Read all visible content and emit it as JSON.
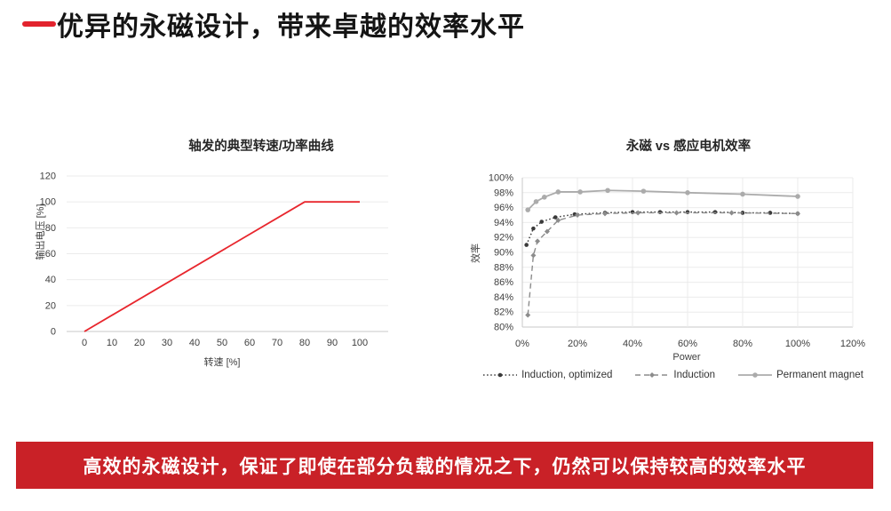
{
  "slide": {
    "title": "优异的永磁设计，带来卓越的效率水平",
    "banner_text": "高效的永磁设计，保证了即使在部分负载的情况之下，仍然可以保持较高的效率水平",
    "colors": {
      "accent_red": "#e2232d",
      "banner_red": "#c92127",
      "curve_red": "#e8262d"
    }
  },
  "chart_data": [
    {
      "type": "line",
      "title": "轴发的典型转速/功率曲线",
      "xlabel": "转速  [%]",
      "ylabel": "输出电压 [%]",
      "xlim": [
        0,
        100
      ],
      "ylim": [
        0,
        120
      ],
      "grid": "horizontal",
      "legend": "none",
      "xticks": [
        {
          "v": 0,
          "label": "0"
        },
        {
          "v": 10,
          "label": "10"
        },
        {
          "v": 20,
          "label": "20"
        },
        {
          "v": 30,
          "label": "30"
        },
        {
          "v": 40,
          "label": "40"
        },
        {
          "v": 50,
          "label": "50"
        },
        {
          "v": 60,
          "label": "60"
        },
        {
          "v": 70,
          "label": "70"
        },
        {
          "v": 80,
          "label": "80"
        },
        {
          "v": 90,
          "label": "90"
        },
        {
          "v": 100,
          "label": "100"
        }
      ],
      "yticks": [
        {
          "v": 0,
          "label": "0"
        },
        {
          "v": 20,
          "label": "20"
        },
        {
          "v": 40,
          "label": "40"
        },
        {
          "v": 60,
          "label": "60"
        },
        {
          "v": 80,
          "label": "80"
        },
        {
          "v": 100,
          "label": "100"
        },
        {
          "v": 120,
          "label": "120"
        }
      ],
      "series": [
        {
          "name": "输出电压",
          "color": "#e8262d",
          "dash": "none",
          "width": 1.8,
          "marker": "none",
          "marker_size": 0,
          "x": [
            0,
            80,
            100
          ],
          "y": [
            0,
            100,
            100
          ]
        }
      ]
    },
    {
      "type": "line",
      "title": "永磁 vs 感应电机效率",
      "xlabel": "Power",
      "ylabel": "效率",
      "xlim": [
        0,
        120
      ],
      "ylim": [
        80,
        100
      ],
      "grid": "both",
      "legend": "bottom",
      "xticks": [
        {
          "v": 0,
          "label": "0%"
        },
        {
          "v": 20,
          "label": "20%"
        },
        {
          "v": 40,
          "label": "40%"
        },
        {
          "v": 60,
          "label": "60%"
        },
        {
          "v": 80,
          "label": "80%"
        },
        {
          "v": 100,
          "label": "100%"
        },
        {
          "v": 120,
          "label": "120%"
        }
      ],
      "yticks": [
        {
          "v": 80,
          "label": "80%"
        },
        {
          "v": 82,
          "label": "82%"
        },
        {
          "v": 84,
          "label": "84%"
        },
        {
          "v": 86,
          "label": "86%"
        },
        {
          "v": 88,
          "label": "88%"
        },
        {
          "v": 90,
          "label": "90%"
        },
        {
          "v": 92,
          "label": "92%"
        },
        {
          "v": 94,
          "label": "94%"
        },
        {
          "v": 96,
          "label": "96%"
        },
        {
          "v": 98,
          "label": "98%"
        },
        {
          "v": 100,
          "label": "100%"
        }
      ],
      "series": [
        {
          "name": "Induction, optimized",
          "color": "#3a3a3a",
          "dash": "1.5 2.6",
          "width": 1.5,
          "marker": "circle",
          "marker_size": 2.3,
          "x": [
            1.5,
            4,
            7,
            12,
            19,
            30,
            40,
            50,
            60,
            70,
            80,
            90,
            100
          ],
          "y": [
            91.0,
            93.2,
            94.1,
            94.7,
            95.1,
            95.3,
            95.4,
            95.4,
            95.4,
            95.4,
            95.3,
            95.3,
            95.2
          ]
        },
        {
          "name": "Induction",
          "color": "#8c8c8c",
          "dash": "6 4",
          "width": 1.4,
          "marker": "diamond",
          "marker_size": 3,
          "x": [
            2,
            4,
            5.5,
            9,
            13,
            20,
            30,
            42,
            56,
            76,
            100
          ],
          "y": [
            81.6,
            89.6,
            91.5,
            92.8,
            94.3,
            95.0,
            95.2,
            95.3,
            95.3,
            95.3,
            95.2
          ]
        },
        {
          "name": "Permanent magnet",
          "color": "#ababab",
          "dash": "none",
          "width": 1.8,
          "marker": "circle",
          "marker_size": 2.8,
          "x": [
            2,
            5,
            8,
            13,
            21,
            31,
            44,
            60,
            80,
            100
          ],
          "y": [
            95.7,
            96.8,
            97.4,
            98.1,
            98.1,
            98.3,
            98.2,
            98.0,
            97.8,
            97.5
          ]
        }
      ]
    }
  ]
}
